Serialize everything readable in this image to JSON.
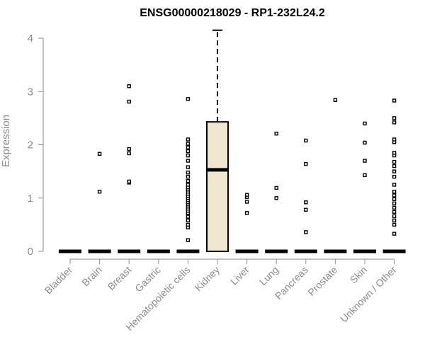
{
  "chart_data": {
    "type": "box",
    "title": "ENSG00000218029 - RP1-232L24.2",
    "xlabel": "",
    "ylabel": "Expression",
    "ylim": [
      0,
      4
    ],
    "yticks": [
      0,
      1,
      2,
      3,
      4
    ],
    "grid": false,
    "colors": {
      "box_fill": "#efe8cf",
      "line": "#000000",
      "axis": "#8a8a8a"
    },
    "categories": [
      "Bladder",
      "Brain",
      "Breast",
      "Gastric",
      "Hematopoietic cells",
      "Kidney",
      "Liver",
      "Lung",
      "Pancreas",
      "Prostate",
      "Skin",
      "Unknown / Other"
    ],
    "boxes": [
      {
        "category": "Bladder",
        "q1": 0,
        "median": 0,
        "q3": 0,
        "whisker_low": 0,
        "whisker_high": 0,
        "outliers": []
      },
      {
        "category": "Brain",
        "q1": 0,
        "median": 0,
        "q3": 0,
        "whisker_low": 0,
        "whisker_high": 0,
        "outliers": [
          1.12,
          1.83
        ]
      },
      {
        "category": "Breast",
        "q1": 0,
        "median": 0,
        "q3": 0,
        "whisker_low": 0,
        "whisker_high": 0,
        "outliers": [
          1.29,
          1.31,
          1.84,
          1.92,
          2.81,
          3.1
        ]
      },
      {
        "category": "Gastric",
        "q1": 0,
        "median": 0,
        "q3": 0,
        "whisker_low": 0,
        "whisker_high": 0,
        "outliers": []
      },
      {
        "category": "Hematopoietic cells",
        "q1": 0,
        "median": 0,
        "q3": 0,
        "whisker_low": 0,
        "whisker_high": 0,
        "outliers": [
          0.21,
          0.45,
          0.5,
          0.58,
          0.65,
          0.72,
          0.76,
          0.8,
          0.84,
          0.88,
          0.92,
          0.96,
          1.0,
          1.04,
          1.08,
          1.12,
          1.16,
          1.2,
          1.25,
          1.32,
          1.4,
          1.48,
          1.58,
          1.7,
          1.8,
          1.88,
          1.95,
          2.02,
          2.1,
          2.86
        ]
      },
      {
        "category": "Kidney",
        "q1": 0,
        "median": 1.53,
        "q3": 2.43,
        "whisker_low": 0,
        "whisker_high": 4.15,
        "outliers": []
      },
      {
        "category": "Liver",
        "q1": 0,
        "median": 0,
        "q3": 0,
        "whisker_low": 0,
        "whisker_high": 0,
        "outliers": [
          0.72,
          0.93,
          1.02,
          1.06
        ]
      },
      {
        "category": "Lung",
        "q1": 0,
        "median": 0,
        "q3": 0,
        "whisker_low": 0,
        "whisker_high": 0,
        "outliers": [
          1.0,
          1.19,
          2.21
        ]
      },
      {
        "category": "Pancreas",
        "q1": 0,
        "median": 0,
        "q3": 0,
        "whisker_low": 0,
        "whisker_high": 0,
        "outliers": [
          0.36,
          0.78,
          0.92,
          1.64,
          2.08
        ]
      },
      {
        "category": "Prostate",
        "q1": 0,
        "median": 0,
        "q3": 0,
        "whisker_low": 0,
        "whisker_high": 0,
        "outliers": [
          2.84
        ]
      },
      {
        "category": "Skin",
        "q1": 0,
        "median": 0,
        "q3": 0,
        "whisker_low": 0,
        "whisker_high": 0,
        "outliers": [
          1.43,
          1.7,
          2.04,
          2.4
        ]
      },
      {
        "category": "Unknown / Other",
        "q1": 0,
        "median": 0,
        "q3": 0,
        "whisker_low": 0,
        "whisker_high": 0,
        "outliers": [
          0.33,
          0.5,
          0.58,
          0.66,
          0.74,
          0.82,
          0.9,
          0.98,
          1.05,
          1.12,
          1.25,
          1.4,
          1.5,
          1.6,
          1.68,
          1.8,
          1.85,
          2.05,
          2.1,
          2.42,
          2.5,
          2.83
        ]
      }
    ]
  }
}
